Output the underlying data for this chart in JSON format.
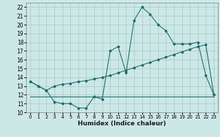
{
  "xlabel": "Humidex (Indice chaleur)",
  "background_color": "#cce8e6",
  "grid_color": "#aaccca",
  "line_color": "#1a6b6b",
  "xlim": [
    -0.5,
    23.5
  ],
  "ylim": [
    10,
    22.5
  ],
  "yticks": [
    10,
    11,
    12,
    13,
    14,
    15,
    16,
    17,
    18,
    19,
    20,
    21,
    22
  ],
  "xticks": [
    0,
    1,
    2,
    3,
    4,
    5,
    6,
    7,
    8,
    9,
    10,
    11,
    12,
    13,
    14,
    15,
    16,
    17,
    18,
    19,
    20,
    21,
    22,
    23
  ],
  "line1_x": [
    0,
    1,
    2,
    3,
    4,
    5,
    6,
    7,
    8,
    9,
    10,
    11,
    12,
    13,
    14,
    15,
    16,
    17,
    18,
    19,
    20,
    21,
    22,
    23
  ],
  "line1_y": [
    13.5,
    13.0,
    12.5,
    11.2,
    11.0,
    11.0,
    10.5,
    10.5,
    11.8,
    11.5,
    17.0,
    17.5,
    14.5,
    20.5,
    22.0,
    21.2,
    20.0,
    19.3,
    17.8,
    17.8,
    17.8,
    18.0,
    14.2,
    12.0
  ],
  "line2_x": [
    0,
    1,
    2,
    3,
    4,
    5,
    6,
    7,
    8,
    9,
    10,
    11,
    12,
    13,
    14,
    15,
    16,
    17,
    18,
    19,
    20,
    21,
    22,
    23
  ],
  "line2_y": [
    13.5,
    13.0,
    12.5,
    13.0,
    13.2,
    13.3,
    13.5,
    13.6,
    13.8,
    14.0,
    14.2,
    14.5,
    14.8,
    15.1,
    15.4,
    15.7,
    16.0,
    16.3,
    16.6,
    16.9,
    17.2,
    17.5,
    17.7,
    12.0
  ],
  "line3_x": [
    0,
    1,
    2,
    3,
    4,
    5,
    6,
    7,
    8,
    9,
    10,
    11,
    12,
    13,
    14,
    15,
    16,
    17,
    18,
    19,
    20,
    21,
    22,
    23
  ],
  "line3_y": [
    11.8,
    11.8,
    11.8,
    11.8,
    11.8,
    11.8,
    11.8,
    11.8,
    11.8,
    11.8,
    11.8,
    11.8,
    11.8,
    11.8,
    11.8,
    11.8,
    11.8,
    11.8,
    11.8,
    11.8,
    11.8,
    11.8,
    11.8,
    11.8
  ],
  "xtick_fontsize": 5.0,
  "ytick_fontsize": 5.5,
  "xlabel_fontsize": 6.5
}
